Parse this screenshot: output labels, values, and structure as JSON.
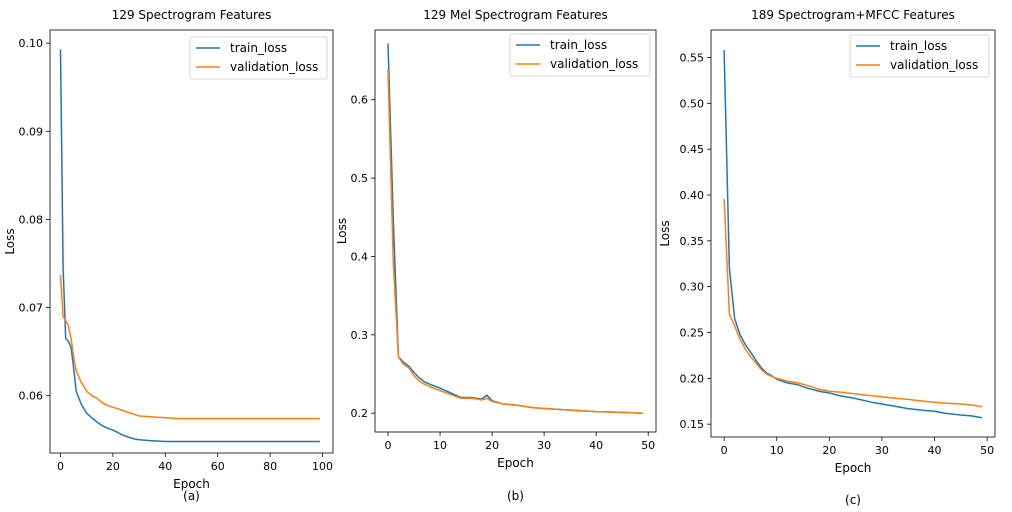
{
  "colors": {
    "train": "#1f77b4",
    "validation": "#ff7f0e"
  },
  "chart_data": [
    {
      "type": "line",
      "title": "129 Spectrogram Features",
      "xlabel": "Epoch",
      "ylabel": "Loss",
      "caption": "(a)",
      "xlim": [
        -4,
        104
      ],
      "ylim": [
        0.0535,
        0.1015
      ],
      "xticks": [
        0,
        20,
        40,
        60,
        80,
        100
      ],
      "yticks": [
        0.06,
        0.07,
        0.08,
        0.09,
        0.1
      ],
      "yticklabels": [
        "0.06",
        "0.07",
        "0.08",
        "0.09",
        "0.10"
      ],
      "legend": "upper-right",
      "series": [
        {
          "name": "train_loss",
          "x": [
            0,
            1,
            2,
            3,
            4,
            5,
            6,
            8,
            10,
            12,
            14,
            16,
            18,
            20,
            22,
            24,
            26,
            28,
            30,
            35,
            40,
            45,
            50,
            55,
            60,
            65,
            70,
            75,
            80,
            85,
            90,
            95,
            99
          ],
          "values": [
            0.0993,
            0.0745,
            0.0665,
            0.0662,
            0.0655,
            0.0632,
            0.0605,
            0.059,
            0.058,
            0.0575,
            0.057,
            0.0566,
            0.0563,
            0.0561,
            0.0558,
            0.0555,
            0.0553,
            0.0551,
            0.055,
            0.0549,
            0.0548,
            0.0548,
            0.0548,
            0.0548,
            0.0548,
            0.0548,
            0.0548,
            0.0548,
            0.0548,
            0.0548,
            0.0548,
            0.0548,
            0.0548
          ]
        },
        {
          "name": "validation_loss",
          "x": [
            0,
            1,
            2,
            3,
            4,
            5,
            6,
            8,
            10,
            12,
            14,
            16,
            18,
            20,
            22,
            24,
            26,
            28,
            30,
            35,
            40,
            45,
            50,
            55,
            60,
            65,
            70,
            75,
            80,
            85,
            90,
            95,
            99
          ],
          "values": [
            0.0737,
            0.069,
            0.0685,
            0.068,
            0.0665,
            0.0645,
            0.0628,
            0.0615,
            0.0605,
            0.06,
            0.0597,
            0.0592,
            0.0589,
            0.0587,
            0.0585,
            0.0583,
            0.0581,
            0.0579,
            0.0577,
            0.0576,
            0.0575,
            0.0574,
            0.0574,
            0.0574,
            0.0574,
            0.0574,
            0.0574,
            0.0574,
            0.0574,
            0.0574,
            0.0574,
            0.0574,
            0.0574
          ]
        }
      ]
    },
    {
      "type": "line",
      "title": "129 Mel Spectrogram Features",
      "xlabel": "Epoch",
      "ylabel": "Loss",
      "caption": "(b)",
      "xlim": [
        -2.5,
        51.5
      ],
      "ylim": [
        0.176,
        0.689
      ],
      "xticks": [
        0,
        10,
        20,
        30,
        40,
        50
      ],
      "yticks": [
        0.2,
        0.3,
        0.4,
        0.5,
        0.6
      ],
      "yticklabels": [
        "0.2",
        "0.3",
        "0.4",
        "0.5",
        "0.6"
      ],
      "legend": "upper-right",
      "series": [
        {
          "name": "train_loss",
          "x": [
            0,
            1,
            2,
            3,
            4,
            5,
            6,
            7,
            8,
            10,
            12,
            14,
            16,
            18,
            19,
            20,
            22,
            25,
            28,
            30,
            35,
            40,
            45,
            49
          ],
          "values": [
            0.672,
            0.45,
            0.272,
            0.265,
            0.26,
            0.252,
            0.245,
            0.24,
            0.237,
            0.232,
            0.226,
            0.22,
            0.22,
            0.218,
            0.223,
            0.216,
            0.212,
            0.21,
            0.207,
            0.206,
            0.204,
            0.202,
            0.201,
            0.2
          ]
        },
        {
          "name": "validation_loss",
          "x": [
            0,
            1,
            2,
            3,
            4,
            5,
            6,
            7,
            8,
            10,
            12,
            14,
            16,
            18,
            19,
            20,
            22,
            25,
            28,
            30,
            35,
            40,
            45,
            49
          ],
          "values": [
            0.638,
            0.395,
            0.272,
            0.262,
            0.258,
            0.248,
            0.241,
            0.237,
            0.234,
            0.229,
            0.224,
            0.219,
            0.219,
            0.217,
            0.219,
            0.215,
            0.212,
            0.21,
            0.207,
            0.206,
            0.204,
            0.202,
            0.201,
            0.2
          ]
        }
      ]
    },
    {
      "type": "line",
      "title": "189 Spectrogram+MFCC Features",
      "xlabel": "Epoch",
      "ylabel": "Loss",
      "caption": "(c)",
      "xlim": [
        -2.5,
        51.5
      ],
      "ylim": [
        0.136,
        0.58
      ],
      "xticks": [
        0,
        10,
        20,
        30,
        40,
        50
      ],
      "yticks": [
        0.15,
        0.2,
        0.25,
        0.3,
        0.35,
        0.4,
        0.45,
        0.5,
        0.55
      ],
      "yticklabels": [
        "0.15",
        "0.20",
        "0.25",
        "0.30",
        "0.35",
        "0.40",
        "0.45",
        "0.50",
        "0.55"
      ],
      "legend": "upper-right",
      "series": [
        {
          "name": "train_loss",
          "x": [
            0,
            1,
            2,
            3,
            4,
            5,
            6,
            7,
            8,
            9,
            10,
            12,
            14,
            16,
            18,
            20,
            22,
            25,
            28,
            30,
            33,
            35,
            38,
            40,
            42,
            45,
            47,
            49
          ],
          "values": [
            0.558,
            0.32,
            0.265,
            0.248,
            0.237,
            0.229,
            0.22,
            0.212,
            0.206,
            0.203,
            0.199,
            0.195,
            0.193,
            0.189,
            0.186,
            0.184,
            0.181,
            0.178,
            0.174,
            0.172,
            0.169,
            0.167,
            0.165,
            0.164,
            0.162,
            0.16,
            0.159,
            0.157
          ]
        },
        {
          "name": "validation_loss",
          "x": [
            0,
            1,
            2,
            3,
            4,
            5,
            6,
            7,
            8,
            9,
            10,
            12,
            14,
            16,
            18,
            20,
            22,
            25,
            28,
            30,
            33,
            35,
            38,
            40,
            42,
            45,
            47,
            49
          ],
          "values": [
            0.396,
            0.27,
            0.257,
            0.243,
            0.232,
            0.224,
            0.217,
            0.21,
            0.205,
            0.202,
            0.2,
            0.197,
            0.195,
            0.192,
            0.188,
            0.186,
            0.185,
            0.183,
            0.181,
            0.18,
            0.178,
            0.177,
            0.175,
            0.174,
            0.173,
            0.172,
            0.171,
            0.169
          ]
        }
      ]
    }
  ]
}
